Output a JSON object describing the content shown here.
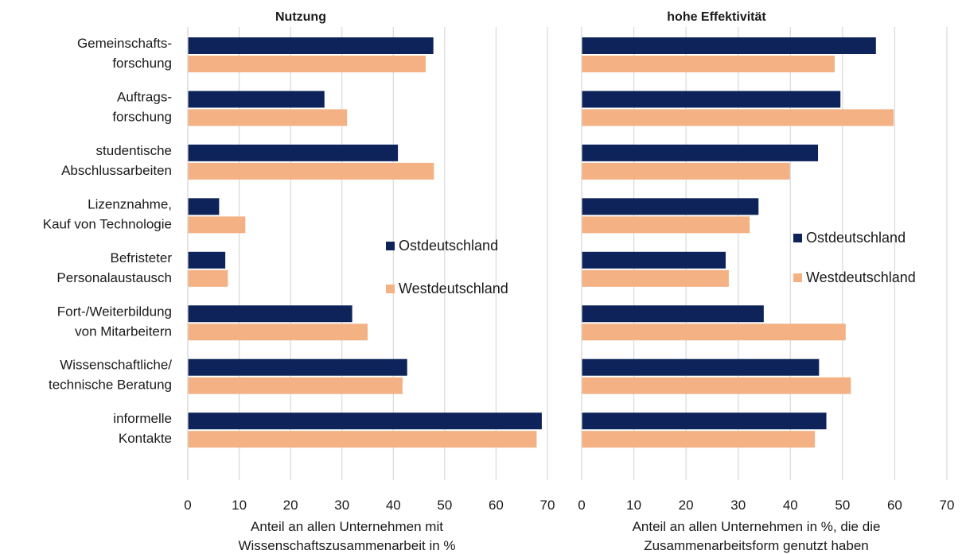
{
  "chart_data": [
    {
      "type": "bar",
      "orientation": "horizontal",
      "title": "Nutzung",
      "xlabel": [
        "Anteil an allen Unternehmen mit",
        "Wissenschaftszusammenarbeit in %"
      ],
      "xlim": [
        0,
        70
      ],
      "xticks": [
        0,
        10,
        20,
        30,
        40,
        50,
        60,
        70
      ],
      "grid": true,
      "legend_position": "right-center",
      "categories": [
        [
          "Gemeinschafts-",
          "forschung"
        ],
        [
          "Auftrags-",
          "forschung"
        ],
        [
          "studentische",
          "Abschlussarbeiten"
        ],
        [
          "Lizenznahme,",
          "Kauf von Technologie"
        ],
        [
          "Befristeter",
          "Personalaustausch"
        ],
        [
          "Fort-/Weiterbildung",
          "von Mitarbeitern"
        ],
        [
          "Wissenschaftliche/",
          "technische Beratung"
        ],
        [
          "informelle",
          "Kontakte"
        ]
      ],
      "series": [
        {
          "name": "Ostdeutschland",
          "color": "#0d2359",
          "values": [
            47.8,
            26.6,
            40.9,
            6.1,
            7.3,
            32.0,
            42.7,
            68.9
          ]
        },
        {
          "name": "Westdeutschland",
          "color": "#f4b183",
          "values": [
            46.3,
            31.0,
            47.9,
            11.2,
            7.8,
            35.0,
            41.8,
            67.9
          ]
        }
      ]
    },
    {
      "type": "bar",
      "orientation": "horizontal",
      "title": "hohe Effektivität",
      "xlabel": [
        "Anteil an allen Unternehmen in %, die die",
        "Zusammenarbeitsform genutzt haben"
      ],
      "xlim": [
        0,
        70
      ],
      "xticks": [
        0,
        10,
        20,
        30,
        40,
        50,
        60,
        70
      ],
      "grid": true,
      "legend_position": "right-center",
      "series": [
        {
          "name": "Ostdeutschland",
          "color": "#0d2359",
          "values": [
            56.4,
            49.6,
            45.3,
            33.9,
            27.6,
            34.9,
            45.5,
            46.9
          ]
        },
        {
          "name": "Westdeutschland",
          "color": "#f4b183",
          "values": [
            48.5,
            59.8,
            39.9,
            32.2,
            28.2,
            50.6,
            51.6,
            44.7
          ]
        }
      ]
    }
  ]
}
